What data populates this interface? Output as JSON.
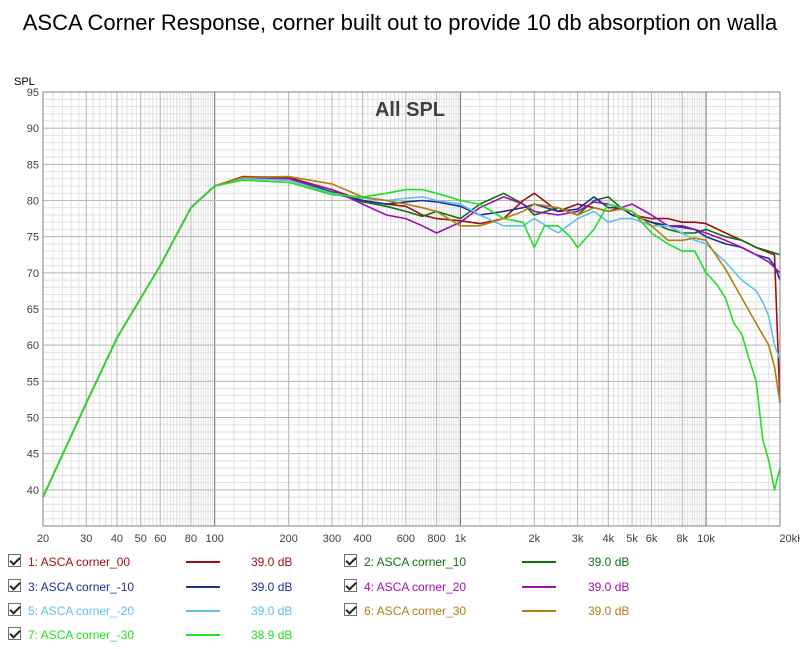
{
  "title": "ASCA Corner Response, corner built out to provide 10 db absorption on walla",
  "chart_data": {
    "type": "line",
    "plot_label": "All SPL",
    "ylabel": "SPL",
    "xscale": "log",
    "xlim": [
      20,
      20000
    ],
    "ylim": [
      35,
      95
    ],
    "grid": true,
    "x_ticks": [
      {
        "v": 20,
        "label": "20"
      },
      {
        "v": 30,
        "label": "30"
      },
      {
        "v": 40,
        "label": "40"
      },
      {
        "v": 50,
        "label": "50"
      },
      {
        "v": 60,
        "label": "60"
      },
      {
        "v": 80,
        "label": "80"
      },
      {
        "v": 100,
        "label": "100"
      },
      {
        "v": 200,
        "label": "200"
      },
      {
        "v": 300,
        "label": "300"
      },
      {
        "v": 400,
        "label": "400"
      },
      {
        "v": 600,
        "label": "600"
      },
      {
        "v": 800,
        "label": "800"
      },
      {
        "v": 1000,
        "label": "1k"
      },
      {
        "v": 2000,
        "label": "2k"
      },
      {
        "v": 3000,
        "label": "3k"
      },
      {
        "v": 4000,
        "label": "4k"
      },
      {
        "v": 5000,
        "label": "5k"
      },
      {
        "v": 6000,
        "label": "6k"
      },
      {
        "v": 8000,
        "label": "8k"
      },
      {
        "v": 10000,
        "label": "10k"
      },
      {
        "v": 20000,
        "label": "20kHz"
      }
    ],
    "y_ticks": [
      {
        "v": 40,
        "label": "40"
      },
      {
        "v": 45,
        "label": "45"
      },
      {
        "v": 50,
        "label": "50"
      },
      {
        "v": 55,
        "label": "55"
      },
      {
        "v": 60,
        "label": "60"
      },
      {
        "v": 65,
        "label": "65"
      },
      {
        "v": 70,
        "label": "70"
      },
      {
        "v": 75,
        "label": "75"
      },
      {
        "v": 80,
        "label": "80"
      },
      {
        "v": 85,
        "label": "85"
      },
      {
        "v": 90,
        "label": "90"
      },
      {
        "v": 95,
        "label": "95"
      }
    ],
    "series": [
      {
        "name": "1: ASCA corner_00",
        "color": "#a01010",
        "offset": "39.0 dB",
        "x": [
          20,
          30,
          40,
          60,
          80,
          100,
          130,
          200,
          300,
          400,
          500,
          600,
          700,
          800,
          1000,
          1200,
          1500,
          1800,
          2000,
          2500,
          3000,
          3500,
          4000,
          4500,
          5000,
          6000,
          7000,
          8000,
          9000,
          10000,
          12000,
          14000,
          16000,
          18000,
          19000,
          20000
        ],
        "y": [
          39,
          52,
          61,
          71,
          79,
          82,
          83.3,
          83.2,
          81.5,
          80,
          79.5,
          79.2,
          78,
          77.5,
          77.2,
          76.8,
          77.5,
          80,
          81,
          78.5,
          79.5,
          79,
          78.5,
          79,
          78,
          77.5,
          77.5,
          77,
          77,
          76.8,
          75.5,
          74.5,
          73.5,
          72.8,
          72.5,
          52
        ]
      },
      {
        "name": "2: ASCA corner_10",
        "color": "#107010",
        "offset": "39.0 dB",
        "x": [
          20,
          30,
          40,
          60,
          80,
          100,
          130,
          200,
          300,
          400,
          500,
          600,
          700,
          800,
          1000,
          1200,
          1500,
          1800,
          2000,
          2500,
          3000,
          3500,
          4000,
          4500,
          5000,
          6000,
          7000,
          8000,
          9000,
          10000,
          12000,
          14000,
          16000,
          18000,
          20000
        ],
        "y": [
          39,
          52,
          61,
          71,
          79,
          82,
          83.1,
          83,
          81.2,
          79.8,
          79.2,
          78.5,
          77.8,
          78.5,
          77.5,
          79.5,
          81,
          79.5,
          78,
          79,
          78,
          80,
          80.5,
          79,
          78,
          77,
          76,
          75.5,
          75.5,
          76,
          75,
          74.5,
          73.5,
          73,
          72.5
        ]
      },
      {
        "name": "3: ASCA corner_-10",
        "color": "#203090",
        "offset": "39.0 dB",
        "x": [
          20,
          30,
          40,
          60,
          80,
          100,
          130,
          200,
          300,
          400,
          500,
          600,
          700,
          800,
          1000,
          1200,
          1500,
          1800,
          2000,
          2500,
          3000,
          3500,
          4000,
          4500,
          5000,
          6000,
          7000,
          8000,
          9000,
          10000,
          12000,
          14000,
          16000,
          18000,
          19000,
          20000
        ],
        "y": [
          39,
          52,
          61,
          71,
          79,
          82,
          83,
          82.8,
          81,
          80,
          79.5,
          79.8,
          80,
          79.8,
          79.2,
          78,
          78.5,
          79,
          79.5,
          78.5,
          78.8,
          80.5,
          79,
          79,
          78,
          77,
          76.5,
          76.3,
          76,
          75,
          74,
          73.5,
          72.5,
          72,
          71,
          69
        ]
      },
      {
        "name": "4: ASCA corner_20",
        "color": "#a010b0",
        "offset": "39.0 dB",
        "x": [
          20,
          30,
          40,
          60,
          80,
          100,
          130,
          200,
          300,
          400,
          500,
          600,
          700,
          800,
          1000,
          1200,
          1500,
          1800,
          2000,
          2500,
          3000,
          3500,
          4000,
          4500,
          5000,
          6000,
          7000,
          8000,
          9000,
          10000,
          12000,
          14000,
          16000,
          18000,
          20000
        ],
        "y": [
          39,
          52,
          61,
          71,
          79,
          82,
          83.2,
          83,
          81.5,
          79.5,
          78,
          77.5,
          76.5,
          75.5,
          77,
          79,
          80.5,
          79.5,
          78.5,
          78,
          78.5,
          79.8,
          79.5,
          79,
          79.5,
          78,
          76.5,
          76.5,
          76,
          75.5,
          74.5,
          73.5,
          72.5,
          71.5,
          70
        ]
      },
      {
        "name": "5: ASCA corner_-20",
        "color": "#60c0ee",
        "offset": "39.0 dB",
        "x": [
          20,
          30,
          40,
          60,
          80,
          100,
          130,
          200,
          300,
          400,
          500,
          600,
          700,
          800,
          1000,
          1200,
          1500,
          1800,
          2000,
          2500,
          3000,
          3500,
          4000,
          4500,
          5000,
          6000,
          7000,
          8000,
          9000,
          10000,
          12000,
          14000,
          16000,
          17000,
          18000,
          19000,
          20000
        ],
        "y": [
          39,
          52,
          61,
          71,
          79,
          82,
          83,
          82.8,
          81,
          80.3,
          80,
          80.3,
          80.5,
          80,
          79.5,
          78,
          76.5,
          76.5,
          77.5,
          75.5,
          77.5,
          78.5,
          77,
          77.5,
          77.5,
          76.5,
          76.5,
          75.5,
          74.5,
          74,
          71.5,
          69,
          67.5,
          66,
          64,
          60,
          58
        ]
      },
      {
        "name": "6: ASCA corner_30",
        "color": "#b08010",
        "offset": "39.0 dB",
        "x": [
          20,
          30,
          40,
          60,
          80,
          100,
          130,
          200,
          300,
          400,
          500,
          600,
          700,
          800,
          1000,
          1200,
          1500,
          1800,
          2000,
          2500,
          3000,
          3500,
          4000,
          4500,
          5000,
          6000,
          7000,
          8000,
          9000,
          10000,
          12000,
          14000,
          16000,
          18000,
          19000,
          20000
        ],
        "y": [
          39,
          52,
          61,
          71,
          79,
          82,
          83.2,
          83.3,
          82.3,
          80.5,
          80,
          79.5,
          79,
          78.5,
          76.5,
          76.5,
          77.5,
          78.5,
          79.5,
          79,
          78,
          79,
          78.5,
          78.8,
          78.5,
          76.5,
          74.5,
          74.5,
          74.8,
          74.5,
          70.5,
          66.5,
          63,
          60,
          57,
          52
        ]
      },
      {
        "name": "7: ASCA corner_-30",
        "color": "#20e020",
        "offset": "38.9 dB",
        "x": [
          20,
          30,
          40,
          60,
          80,
          100,
          130,
          200,
          300,
          400,
          500,
          600,
          700,
          800,
          900,
          1000,
          1200,
          1500,
          1800,
          2000,
          2200,
          2500,
          2800,
          3000,
          3500,
          4000,
          4500,
          5000,
          6000,
          7000,
          8000,
          9000,
          10000,
          11000,
          12000,
          13000,
          14000,
          15000,
          16000,
          17000,
          18000,
          19000,
          20000
        ],
        "y": [
          39,
          52,
          61,
          71,
          79,
          82,
          82.8,
          82.5,
          80.8,
          80.5,
          81,
          81.5,
          81.5,
          81,
          80.5,
          80,
          79.5,
          77.5,
          77,
          73.5,
          76.5,
          76.5,
          75,
          73.5,
          76,
          79.5,
          79,
          78.5,
          75.5,
          74,
          73,
          73,
          70,
          68.5,
          66.5,
          63,
          61.5,
          58,
          55,
          47,
          44,
          40,
          43
        ]
      }
    ]
  }
}
